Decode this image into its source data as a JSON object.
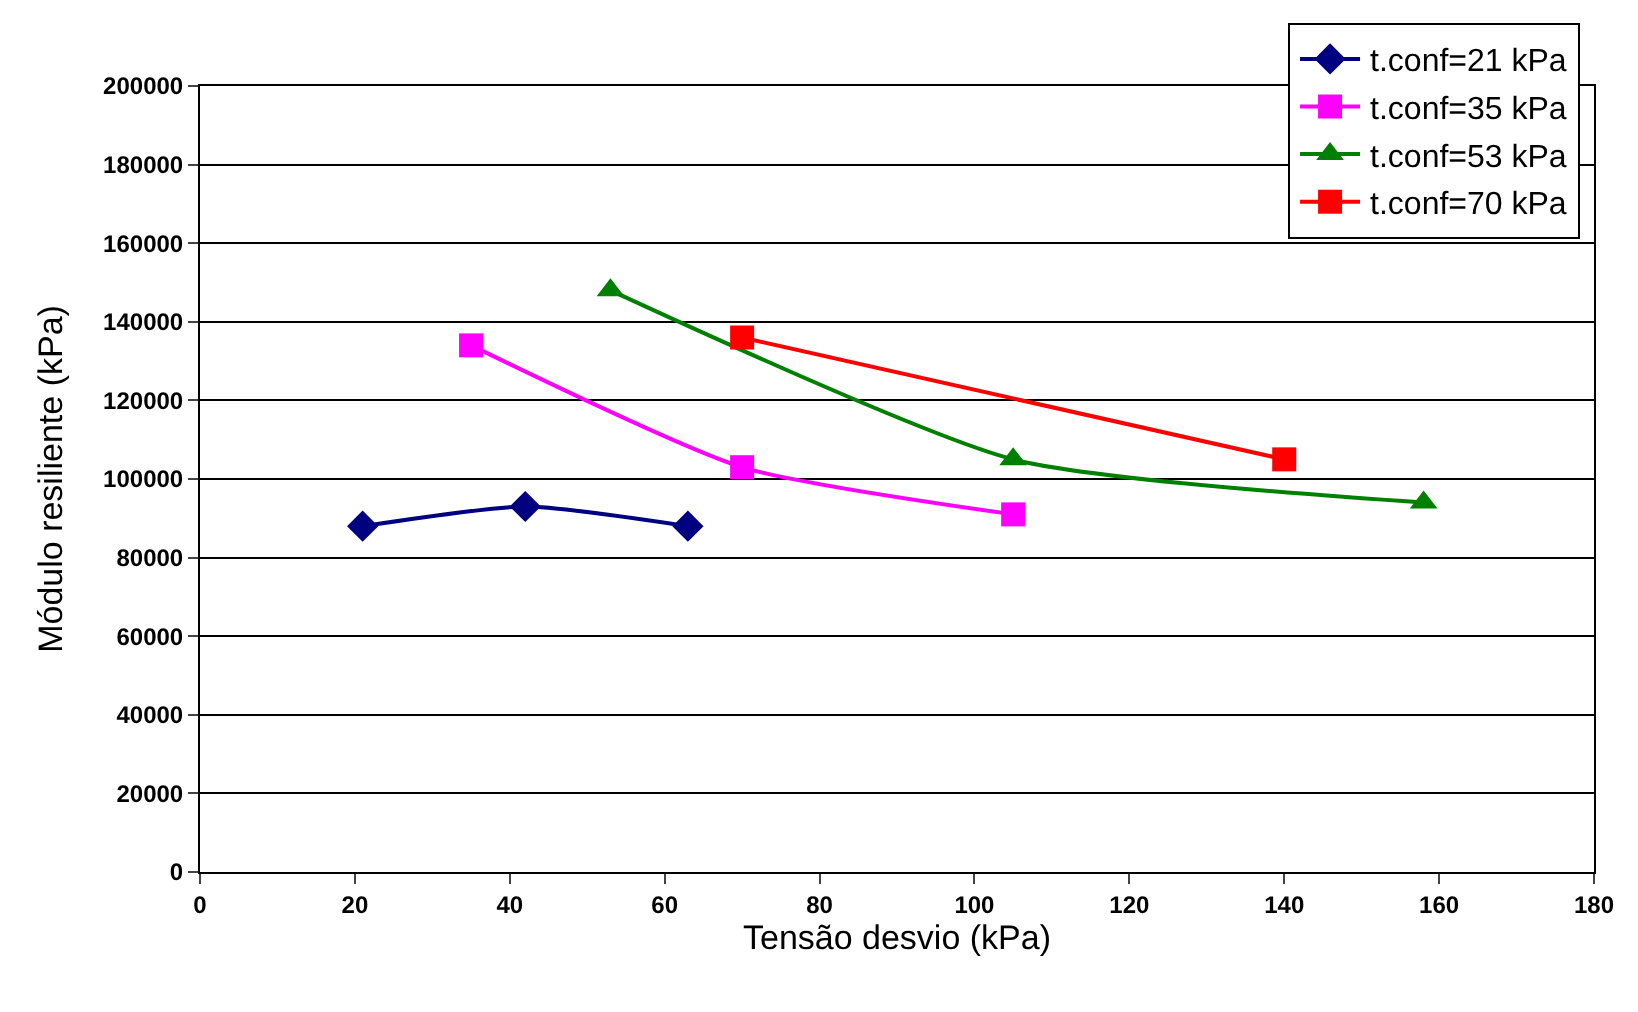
{
  "chart_data": {
    "type": "line",
    "xlabel": "Tensão desvio (kPa)",
    "ylabel": "Módulo resiliente (kPa)",
    "xlim": [
      0,
      180
    ],
    "xticks": [
      0,
      20,
      40,
      60,
      80,
      100,
      120,
      140,
      160,
      180
    ],
    "ylim": [
      0,
      200000
    ],
    "yticks": [
      0,
      20000,
      40000,
      60000,
      80000,
      100000,
      120000,
      140000,
      160000,
      180000,
      200000
    ],
    "grid": "y",
    "legend": "top right",
    "series": [
      {
        "name": "t.conf=21 kPa",
        "color": "#000080",
        "marker": "diamond",
        "x": [
          21,
          42,
          63
        ],
        "values": [
          88000,
          93000,
          88000
        ]
      },
      {
        "name": "t.conf=35 kPa",
        "color": "#ff00ff",
        "marker": "square",
        "x": [
          35,
          70,
          105
        ],
        "values": [
          134000,
          103000,
          91000
        ]
      },
      {
        "name": "t.conf=53 kPa",
        "color": "#008000",
        "marker": "triangle",
        "x": [
          53,
          105,
          158
        ],
        "values": [
          148000,
          105000,
          94000
        ]
      },
      {
        "name": "t.conf=70 kPa",
        "color": "#ff0000",
        "marker": "square",
        "x": [
          70,
          140
        ],
        "values": [
          136000,
          105000
        ]
      }
    ]
  }
}
